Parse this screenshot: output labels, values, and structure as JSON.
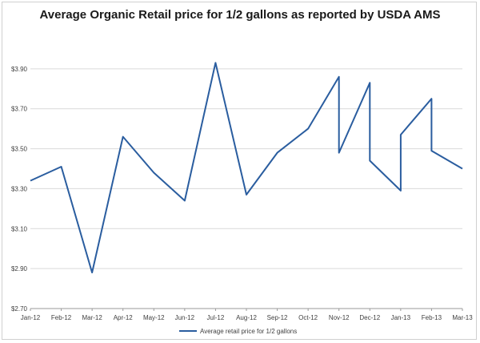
{
  "chart_data": {
    "type": "line",
    "title": "Average Organic Retail price for 1/2 gallons as reported by USDA AMS",
    "xlabel": "",
    "ylabel": "",
    "ylim": [
      2.7,
      4.1
    ],
    "yticks": [
      2.7,
      2.9,
      3.1,
      3.3,
      3.5,
      3.7,
      3.9
    ],
    "ytick_labels": [
      "$2.70",
      "$2.90",
      "$3.10",
      "$3.30",
      "$3.50",
      "$3.70",
      "$3.90"
    ],
    "categories": [
      "Jan-12",
      "Feb-12",
      "Mar-12",
      "Apr-12",
      "May-12",
      "Jun-12",
      "Jul-12",
      "Aug-12",
      "Sep-12",
      "Oct-12",
      "Nov-12",
      "Dec-12",
      "Jan-13",
      "Feb-13",
      "Mar-13"
    ],
    "series": [
      {
        "name": "Average retail price for 1/2 gallons",
        "color": "#2a5d9f",
        "points": [
          {
            "x": 0,
            "y": 3.34
          },
          {
            "x": 1,
            "y": 3.41
          },
          {
            "x": 2,
            "y": 2.88
          },
          {
            "x": 3,
            "y": 3.56
          },
          {
            "x": 4,
            "y": 3.38
          },
          {
            "x": 5,
            "y": 3.24
          },
          {
            "x": 6,
            "y": 3.93
          },
          {
            "x": 7,
            "y": 3.27
          },
          {
            "x": 8,
            "y": 3.48
          },
          {
            "x": 9,
            "y": 3.6
          },
          {
            "x": 10,
            "y": 3.86
          },
          {
            "x": 10,
            "y": 3.48
          },
          {
            "x": 11,
            "y": 3.83
          },
          {
            "x": 11,
            "y": 3.44
          },
          {
            "x": 12,
            "y": 3.29
          },
          {
            "x": 12,
            "y": 3.57
          },
          {
            "x": 13,
            "y": 3.75
          },
          {
            "x": 13,
            "y": 3.49
          },
          {
            "x": 14,
            "y": 3.4
          }
        ]
      }
    ],
    "grid": true,
    "legend_position": "bottom"
  }
}
